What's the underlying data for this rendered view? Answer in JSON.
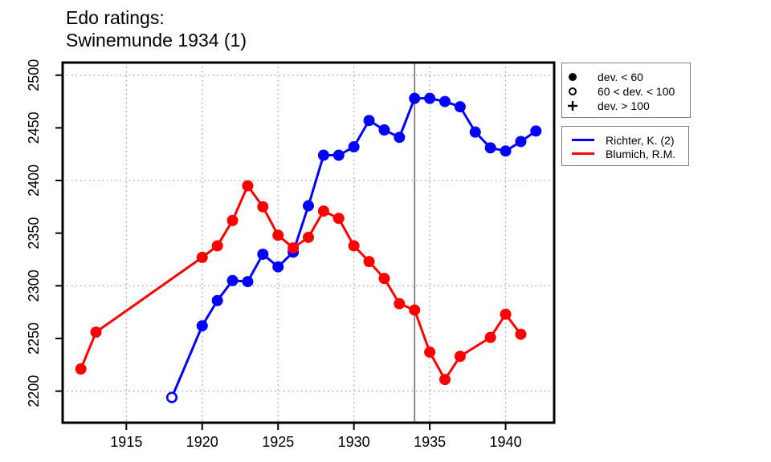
{
  "title": {
    "line1": "Edo ratings:",
    "line2": "Swinemunde 1934 (1)"
  },
  "colors": {
    "series1": "#0000ff",
    "series2": "#ff0000",
    "reference_line": "#808080",
    "grid": "#999999",
    "axis": "#000000",
    "legend_border": "#808080"
  },
  "chart_data": {
    "type": "line",
    "title": "Edo ratings: Swinemunde 1934 (1)",
    "xlabel": "",
    "ylabel": "",
    "xlim": [
      1910.8,
      1943.2
    ],
    "ylim": [
      2170,
      2512
    ],
    "x_ticks": [
      1915,
      1920,
      1925,
      1930,
      1935,
      1940
    ],
    "y_ticks": [
      2200,
      2250,
      2300,
      2350,
      2400,
      2450,
      2500
    ],
    "x_gridlines": [
      1915,
      1920,
      1925,
      1930,
      1935,
      1940
    ],
    "y_gridlines": [
      2200,
      2300,
      2400,
      2500
    ],
    "grid": "dotted",
    "reference_line_x": 1934,
    "legend_position": "right-outside",
    "marker_legend": [
      {
        "symbol": "filled-circle",
        "label": "dev. < 60"
      },
      {
        "symbol": "open-circle",
        "label": "60 < dev. < 100"
      },
      {
        "symbol": "plus",
        "label": "dev. > 100"
      }
    ],
    "series": [
      {
        "name": "Richter, K. (2)",
        "color": "#0000ff",
        "points": [
          {
            "x": 1918,
            "y": 2194,
            "marker": "open"
          },
          {
            "x": 1920,
            "y": 2262
          },
          {
            "x": 1921,
            "y": 2286
          },
          {
            "x": 1922,
            "y": 2305
          },
          {
            "x": 1923,
            "y": 2304
          },
          {
            "x": 1924,
            "y": 2330
          },
          {
            "x": 1925,
            "y": 2318
          },
          {
            "x": 1926,
            "y": 2332
          },
          {
            "x": 1927,
            "y": 2376
          },
          {
            "x": 1928,
            "y": 2424
          },
          {
            "x": 1929,
            "y": 2424
          },
          {
            "x": 1930,
            "y": 2432
          },
          {
            "x": 1931,
            "y": 2457
          },
          {
            "x": 1932,
            "y": 2448
          },
          {
            "x": 1933,
            "y": 2441
          },
          {
            "x": 1934,
            "y": 2478
          },
          {
            "x": 1935,
            "y": 2478
          },
          {
            "x": 1936,
            "y": 2475
          },
          {
            "x": 1937,
            "y": 2470
          },
          {
            "x": 1938,
            "y": 2446
          },
          {
            "x": 1939,
            "y": 2431
          },
          {
            "x": 1940,
            "y": 2428
          },
          {
            "x": 1941,
            "y": 2437
          },
          {
            "x": 1942,
            "y": 2447
          }
        ]
      },
      {
        "name": "Blumich, R.M.",
        "color": "#ff0000",
        "points": [
          {
            "x": 1912,
            "y": 2221
          },
          {
            "x": 1913,
            "y": 2256
          },
          {
            "x": 1920,
            "y": 2327
          },
          {
            "x": 1921,
            "y": 2338
          },
          {
            "x": 1922,
            "y": 2362
          },
          {
            "x": 1923,
            "y": 2395
          },
          {
            "x": 1924,
            "y": 2375
          },
          {
            "x": 1925,
            "y": 2348
          },
          {
            "x": 1926,
            "y": 2336
          },
          {
            "x": 1927,
            "y": 2346
          },
          {
            "x": 1928,
            "y": 2371
          },
          {
            "x": 1929,
            "y": 2364
          },
          {
            "x": 1930,
            "y": 2338
          },
          {
            "x": 1931,
            "y": 2323
          },
          {
            "x": 1932,
            "y": 2307
          },
          {
            "x": 1933,
            "y": 2283
          },
          {
            "x": 1934,
            "y": 2277
          },
          {
            "x": 1935,
            "y": 2237
          },
          {
            "x": 1936,
            "y": 2211
          },
          {
            "x": 1937,
            "y": 2233
          },
          {
            "x": 1939,
            "y": 2251
          },
          {
            "x": 1940,
            "y": 2273
          },
          {
            "x": 1941,
            "y": 2254
          }
        ]
      }
    ]
  }
}
